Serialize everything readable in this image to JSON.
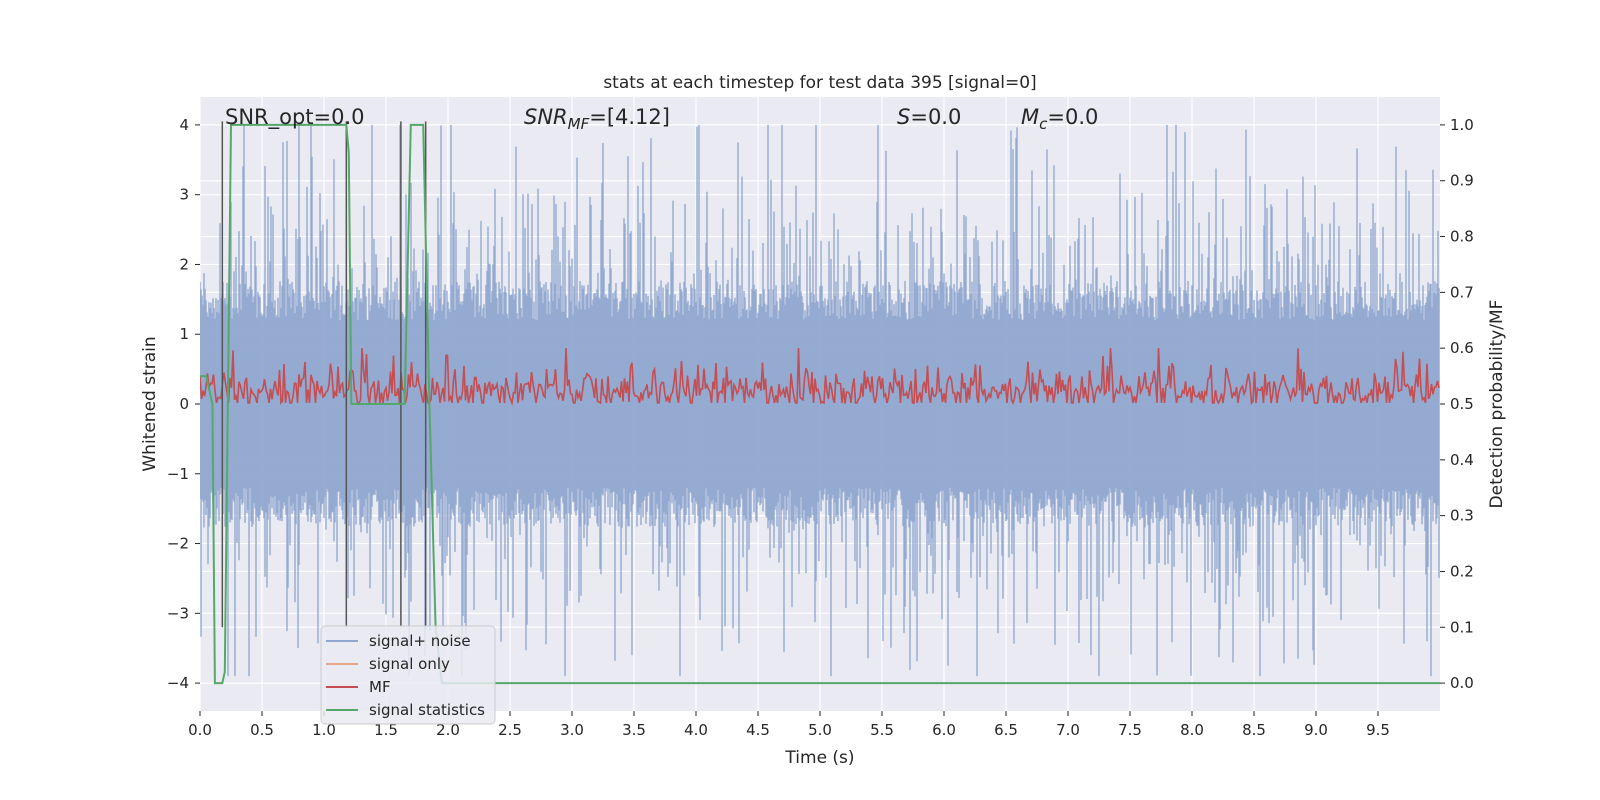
{
  "chart_data": {
    "type": "line",
    "title": "stats at each timestep for test data 395 [signal=0]",
    "xlabel": "Time (s)",
    "ylabel_left": "Whitened strain",
    "ylabel_right": "Detection probability/MF",
    "xlim": [
      0,
      10
    ],
    "ylim_left": [
      -4.4,
      4.4
    ],
    "ylim_right": [
      -0.05,
      1.05
    ],
    "x_ticks": [
      "0.0",
      "0.5",
      "1.0",
      "1.5",
      "2.0",
      "2.5",
      "3.0",
      "3.5",
      "4.0",
      "4.5",
      "5.0",
      "5.5",
      "6.0",
      "6.5",
      "7.0",
      "7.5",
      "8.0",
      "8.5",
      "9.0",
      "9.5"
    ],
    "y_ticks_left": [
      "4",
      "3",
      "2",
      "1",
      "0",
      "−1",
      "−2",
      "−3",
      "−4"
    ],
    "y_ticks_right": [
      "1.0",
      "0.9",
      "0.8",
      "0.7",
      "0.6",
      "0.5",
      "0.4",
      "0.3",
      "0.2",
      "0.1",
      "0.0"
    ],
    "grid": true,
    "background": "#eaeaf2",
    "annotations": {
      "snr_opt": "SNR_opt=0.0",
      "snr_mf_sym": "SNR",
      "snr_mf_sub": "MF",
      "snr_mf_val": "=[4.12]",
      "s_sym": "S",
      "s_val": "=0.0",
      "mc_sym": "M",
      "mc_sub": "c",
      "mc_val": "=0.0"
    },
    "legend": {
      "placement": "lower-left",
      "entries": [
        {
          "label": "signal+ noise",
          "color": "#8fa6cf"
        },
        {
          "label": "signal only",
          "color": "#e8a78c"
        },
        {
          "label": "MF",
          "color": "#c44e52"
        },
        {
          "label": "signal statistics",
          "color": "#55a868"
        }
      ]
    },
    "series": [
      {
        "name": "signal+ noise",
        "axis": "left",
        "color": "#8fa6cf",
        "description_stats": {
          "min": -3.9,
          "max": 4.0,
          "band_upper_typical": 1.6,
          "band_lower_typical": -1.6
        }
      },
      {
        "name": "MF",
        "axis": "right",
        "color": "#c44e52",
        "description_stats": {
          "baseline": 0.5,
          "typical_max": 0.58,
          "peak": 0.6
        }
      },
      {
        "name": "signal statistics",
        "axis": "right",
        "color": "#55a868",
        "x": [
          0.0,
          0.05,
          0.1,
          0.12,
          0.18,
          0.2,
          0.25,
          1.18,
          1.2,
          1.22,
          1.25,
          1.28,
          1.6,
          1.65,
          1.7,
          1.8,
          1.85,
          1.9,
          1.95,
          10.0
        ],
        "y": [
          0.55,
          0.55,
          0.5,
          0.0,
          0.0,
          0.02,
          1.0,
          1.0,
          0.95,
          0.5,
          0.5,
          0.5,
          0.5,
          0.5,
          1.0,
          1.0,
          0.5,
          0.1,
          0.0,
          0.0
        ]
      },
      {
        "name": "vertical markers",
        "axis": "left",
        "color": "#555555",
        "x": [
          0.18,
          1.18,
          1.62,
          1.82
        ]
      }
    ]
  }
}
